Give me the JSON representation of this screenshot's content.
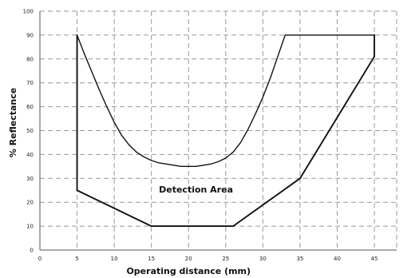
{
  "chart_data": {
    "type": "line",
    "title": "",
    "xlabel": "Operating distance (mm)",
    "ylabel": "% Reflectance",
    "xlim": [
      0,
      48
    ],
    "ylim": [
      0,
      100
    ],
    "x_ticks": [
      0,
      5,
      10,
      15,
      20,
      25,
      30,
      35,
      40,
      45
    ],
    "y_ticks": [
      0,
      10,
      20,
      30,
      40,
      50,
      60,
      70,
      80,
      90,
      100
    ],
    "x_tick_labels": [
      "0",
      "5",
      "10",
      "15",
      "20",
      "25",
      "30",
      "35",
      "40",
      "45"
    ],
    "y_tick_labels": [
      "0",
      "10",
      "20",
      "30",
      "40",
      "50",
      "60",
      "70",
      "80",
      "90",
      "100"
    ],
    "grid": true,
    "annotation": "Detection  Area",
    "series": [
      {
        "role": "upper-boundary",
        "x": [
          5,
          6,
          7,
          8,
          9,
          10,
          11,
          12,
          13,
          14,
          15,
          16,
          17,
          18,
          19,
          20,
          21,
          22,
          23,
          24,
          25,
          26,
          27,
          28,
          29,
          30,
          31,
          32,
          33,
          45
        ],
        "y": [
          90,
          82,
          74.5,
          67,
          60,
          53.5,
          48,
          44,
          41,
          39,
          37.5,
          36.5,
          36,
          35.5,
          35,
          35,
          35,
          35.5,
          36,
          37,
          38.5,
          41,
          45,
          50.5,
          57,
          64,
          72,
          81,
          90,
          90
        ]
      },
      {
        "role": "lower-boundary",
        "x": [
          5,
          5,
          15,
          26,
          35,
          45,
          45
        ],
        "y": [
          90,
          25,
          10,
          10,
          30,
          81,
          90
        ]
      }
    ]
  }
}
